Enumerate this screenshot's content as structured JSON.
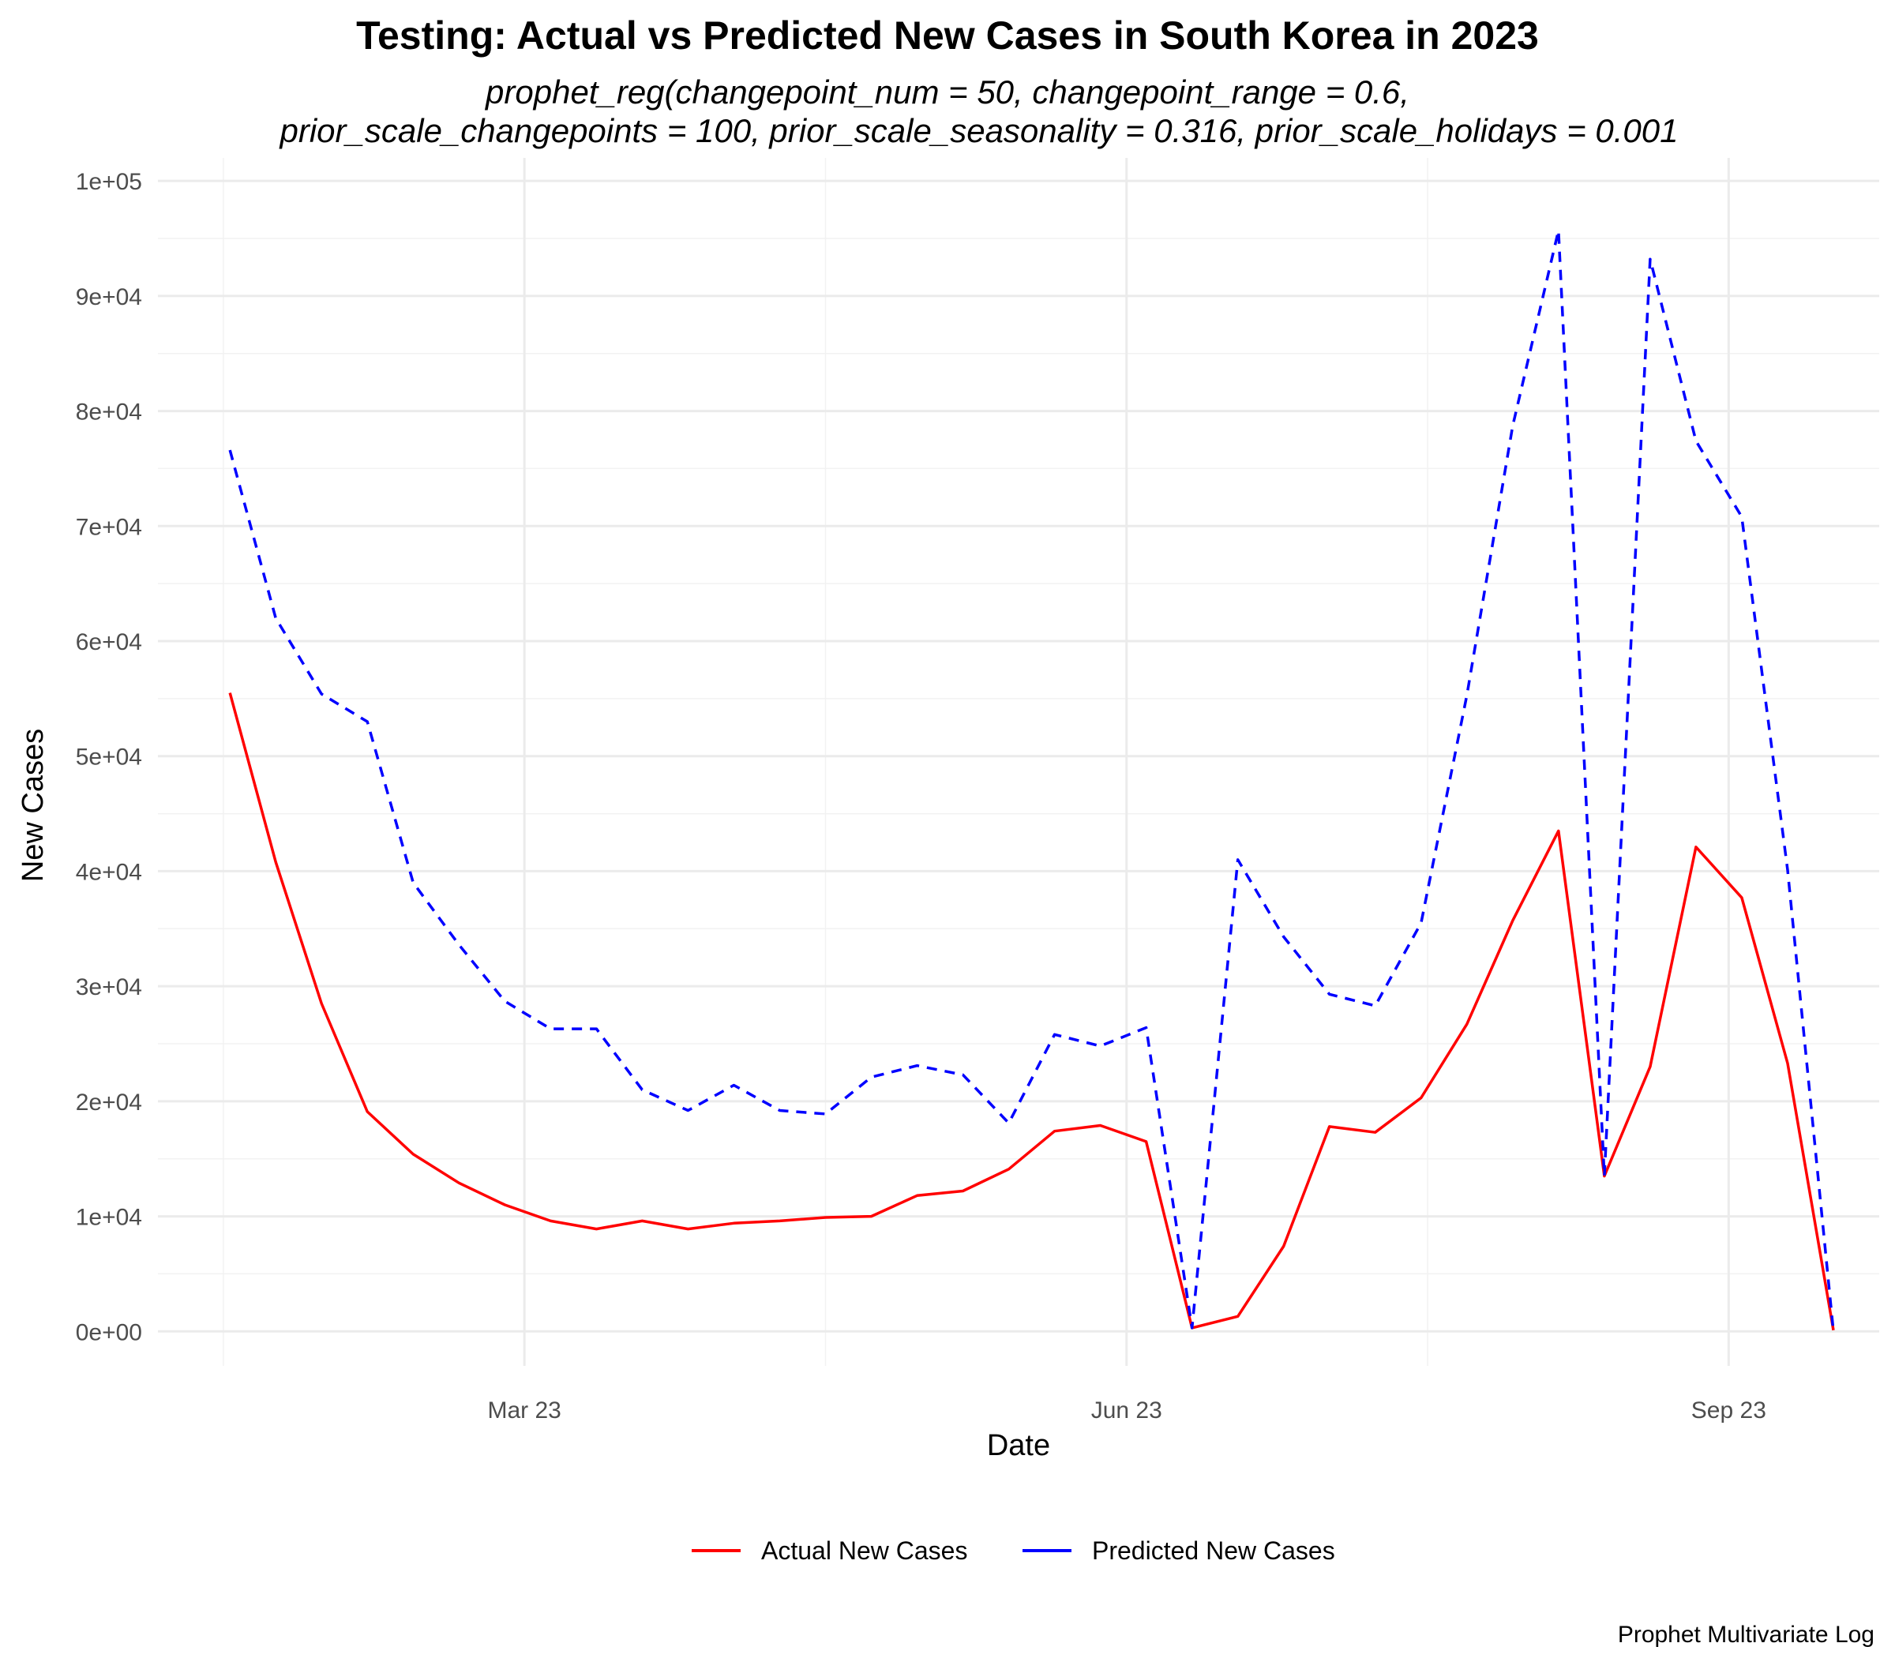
{
  "chart_data": {
    "type": "line",
    "title": "Testing: Actual vs Predicted New Cases in South Korea in 2023",
    "subtitle_line1": "prophet_reg(changepoint_num = 50, changepoint_range = 0.6,",
    "subtitle_line2": "prior_scale_changepoints = 100, prior_scale_seasonality = 0.316, prior_scale_holidays = 0.001",
    "xlabel": "Date",
    "ylabel": "New Cases",
    "caption": "Prophet Multivariate Log",
    "x_ticks": [
      {
        "date": "2023-03-01",
        "label": "Mar 23"
      },
      {
        "date": "2023-06-01",
        "label": "Jun 23"
      },
      {
        "date": "2023-09-01",
        "label": "Sep 23"
      }
    ],
    "y_ticks": [
      {
        "value": 0,
        "label": "0e+00"
      },
      {
        "value": 10000,
        "label": "1e+04"
      },
      {
        "value": 20000,
        "label": "2e+04"
      },
      {
        "value": 30000,
        "label": "3e+04"
      },
      {
        "value": 40000,
        "label": "4e+04"
      },
      {
        "value": 50000,
        "label": "5e+04"
      },
      {
        "value": 60000,
        "label": "6e+04"
      },
      {
        "value": 70000,
        "label": "7e+04"
      },
      {
        "value": 80000,
        "label": "8e+04"
      },
      {
        "value": 90000,
        "label": "9e+04"
      },
      {
        "value": 100000,
        "label": "1e+05"
      }
    ],
    "xlim": [
      "2023-01-04",
      "2023-09-24"
    ],
    "ylim": [
      -3000,
      102000
    ],
    "grid": true,
    "legend_position": "bottom",
    "x": [
      "2023-01-15",
      "2023-01-22",
      "2023-01-29",
      "2023-02-05",
      "2023-02-12",
      "2023-02-19",
      "2023-02-26",
      "2023-03-05",
      "2023-03-12",
      "2023-03-19",
      "2023-03-26",
      "2023-04-02",
      "2023-04-09",
      "2023-04-16",
      "2023-04-23",
      "2023-04-30",
      "2023-05-07",
      "2023-05-14",
      "2023-05-21",
      "2023-05-28",
      "2023-06-04",
      "2023-06-11",
      "2023-06-18",
      "2023-06-25",
      "2023-07-02",
      "2023-07-09",
      "2023-07-16",
      "2023-07-23",
      "2023-07-30",
      "2023-08-06",
      "2023-08-13",
      "2023-08-20",
      "2023-08-27",
      "2023-09-03",
      "2023-09-10",
      "2023-09-17"
    ],
    "series": [
      {
        "name": "Actual New Cases",
        "color": "#ff0000",
        "dash": "solid",
        "values": [
          55500,
          40800,
          28500,
          19100,
          15400,
          12900,
          11000,
          9600,
          8900,
          9600,
          8900,
          9400,
          9600,
          9900,
          10000,
          11800,
          12200,
          14100,
          17400,
          17900,
          16500,
          300,
          1300,
          7400,
          17800,
          17300,
          20300,
          26700,
          35700,
          43500,
          13500,
          23000,
          42100,
          37700,
          23300,
          100
        ]
      },
      {
        "name": "Predicted New Cases",
        "color": "#0000ff",
        "dash": "dashed",
        "values": [
          76600,
          62000,
          55400,
          53000,
          39000,
          33600,
          28700,
          26300,
          26300,
          21000,
          19200,
          21400,
          19200,
          18900,
          22100,
          23100,
          22300,
          18100,
          25800,
          24800,
          26400,
          300,
          41000,
          34300,
          29300,
          28300,
          35500,
          55300,
          78700,
          95700,
          13500,
          93200,
          77400,
          70800,
          40100,
          0
        ]
      }
    ]
  }
}
